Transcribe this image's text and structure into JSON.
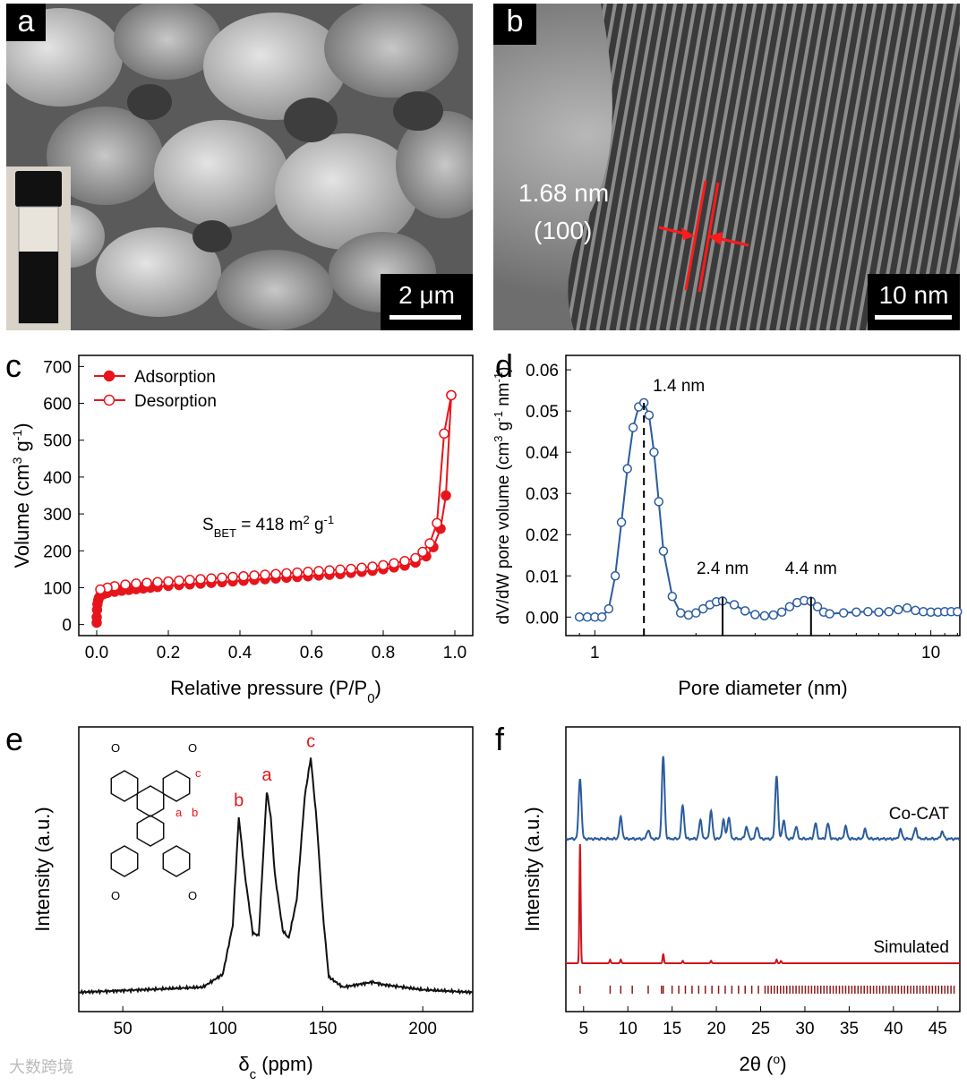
{
  "panels": {
    "a": {
      "label": "a",
      "scale_label": "2 μm"
    },
    "b": {
      "label": "b",
      "scale_label": "10 nm",
      "spacing_label": "1.68 nm",
      "plane_label": "(100)"
    },
    "c": {
      "label": "c"
    },
    "d": {
      "label": "d"
    },
    "e": {
      "label": "e"
    },
    "f": {
      "label": "f"
    }
  },
  "watermark": "大数跨境",
  "chart_data": [
    {
      "panel": "c",
      "type": "scatter",
      "xlabel": "Relative pressure (P/P0)",
      "ylabel": "Volume (cm3 g-1)",
      "xlim": [
        -0.05,
        1.05
      ],
      "ylim": [
        -30,
        730
      ],
      "xticks": [
        "0.0",
        "0.2",
        "0.4",
        "0.6",
        "0.8",
        "1.0"
      ],
      "yticks": [
        "0",
        "100",
        "200",
        "300",
        "400",
        "500",
        "600",
        "700"
      ],
      "annotation": "SBET = 418 m2 g-1",
      "legend": [
        "Adsorption",
        "Desorption"
      ],
      "legend_position": "top-left",
      "colors": {
        "adsorption": "#e8141b",
        "desorption": "#e8141b"
      },
      "series": [
        {
          "name": "Adsorption",
          "marker": "filled",
          "x": [
            0.0,
            0.0,
            0.001,
            0.002,
            0.004,
            0.006,
            0.01,
            0.02,
            0.03,
            0.05,
            0.07,
            0.09,
            0.11,
            0.13,
            0.15,
            0.17,
            0.2,
            0.23,
            0.26,
            0.29,
            0.32,
            0.35,
            0.38,
            0.41,
            0.44,
            0.47,
            0.5,
            0.53,
            0.56,
            0.59,
            0.62,
            0.65,
            0.68,
            0.71,
            0.74,
            0.77,
            0.8,
            0.83,
            0.86,
            0.89,
            0.92,
            0.94,
            0.96,
            0.975,
            0.99
          ],
          "y": [
            5,
            20,
            40,
            55,
            65,
            72,
            78,
            83,
            86,
            89,
            92,
            94,
            96,
            98,
            100,
            102,
            105,
            107,
            109,
            111,
            113,
            115,
            117,
            119,
            121,
            123,
            125,
            127,
            129,
            131,
            133,
            135,
            137,
            140,
            143,
            146,
            150,
            155,
            160,
            168,
            185,
            210,
            260,
            350,
            622
          ]
        },
        {
          "name": "Desorption",
          "marker": "open",
          "x": [
            0.99,
            0.97,
            0.95,
            0.93,
            0.91,
            0.89,
            0.86,
            0.83,
            0.8,
            0.77,
            0.74,
            0.71,
            0.68,
            0.65,
            0.62,
            0.59,
            0.56,
            0.53,
            0.5,
            0.47,
            0.44,
            0.41,
            0.38,
            0.35,
            0.32,
            0.29,
            0.26,
            0.23,
            0.2,
            0.17,
            0.14,
            0.11,
            0.08,
            0.05,
            0.03,
            0.01
          ],
          "y": [
            622,
            518,
            275,
            220,
            197,
            180,
            172,
            166,
            161,
            157,
            154,
            151,
            149,
            147,
            145,
            143,
            141,
            139,
            137,
            135,
            133,
            131,
            129,
            127,
            125,
            123,
            121,
            119,
            117,
            115,
            113,
            111,
            108,
            104,
            100,
            95
          ]
        }
      ]
    },
    {
      "panel": "d",
      "type": "line",
      "xlabel": "Pore diameter (nm)",
      "ylabel": "dV/dW pore volume (cm3 g-1 nm-1)",
      "xscale": "log",
      "xlim": [
        0.82,
        12.2
      ],
      "ylim": [
        -0.0045,
        0.0635
      ],
      "xticks": [
        "1",
        "10"
      ],
      "yticks": [
        "0.00",
        "0.01",
        "0.02",
        "0.03",
        "0.04",
        "0.05",
        "0.06"
      ],
      "annotations": [
        "1.4 nm",
        "2.4 nm",
        "4.4 nm"
      ],
      "colors": {
        "line": "#2b5c9e"
      },
      "series": [
        {
          "name": "",
          "x": [
            0.9,
            0.95,
            1.0,
            1.05,
            1.1,
            1.15,
            1.2,
            1.25,
            1.3,
            1.35,
            1.4,
            1.45,
            1.5,
            1.55,
            1.6,
            1.7,
            1.8,
            1.9,
            2.0,
            2.1,
            2.2,
            2.3,
            2.4,
            2.6,
            2.8,
            3.0,
            3.2,
            3.4,
            3.6,
            3.8,
            4.0,
            4.2,
            4.4,
            4.6,
            4.8,
            5.0,
            5.5,
            6.0,
            6.5,
            7.0,
            7.5,
            8.0,
            8.5,
            9.0,
            9.5,
            10.0,
            10.5,
            11.0,
            11.5,
            12.0
          ],
          "y": [
            0.0,
            0.0,
            0.0,
            0.0,
            0.002,
            0.01,
            0.023,
            0.036,
            0.046,
            0.051,
            0.052,
            0.049,
            0.04,
            0.028,
            0.016,
            0.005,
            0.001,
            0.0005,
            0.001,
            0.002,
            0.003,
            0.0037,
            0.0039,
            0.003,
            0.0015,
            0.0006,
            0.0003,
            0.0005,
            0.0012,
            0.0025,
            0.0035,
            0.004,
            0.0038,
            0.0025,
            0.0012,
            0.0008,
            0.001,
            0.0012,
            0.0013,
            0.0012,
            0.0013,
            0.0018,
            0.0022,
            0.0016,
            0.0013,
            0.0012,
            0.0012,
            0.0013,
            0.0013,
            0.0013
          ]
        }
      ]
    },
    {
      "panel": "e",
      "type": "line",
      "xlabel": "δc (ppm)",
      "ylabel": "Intensity (a.u.)",
      "xlim": [
        28,
        225
      ],
      "xticks": [
        "50",
        "100",
        "150",
        "200"
      ],
      "peak_labels": [
        "a",
        "b",
        "c"
      ],
      "structure_labels": [
        "c",
        "a",
        "b"
      ],
      "colors": {
        "line": "#111111",
        "peak_labels": "#e8141b"
      },
      "series": [
        {
          "name": "",
          "x": [
            28,
            60,
            90,
            100,
            105,
            108,
            111,
            115,
            118,
            122,
            124,
            126,
            130,
            133,
            137,
            141,
            144,
            147,
            150,
            153,
            160,
            175,
            180,
            200,
            225
          ],
          "y": [
            0.04,
            0.05,
            0.06,
            0.11,
            0.3,
            0.72,
            0.5,
            0.27,
            0.26,
            0.82,
            0.72,
            0.5,
            0.28,
            0.25,
            0.4,
            0.8,
            0.95,
            0.7,
            0.35,
            0.1,
            0.06,
            0.08,
            0.07,
            0.05,
            0.04
          ]
        }
      ]
    },
    {
      "panel": "f",
      "type": "line",
      "xlabel": "2θ (o)",
      "ylabel": "Intensity (a.u.)",
      "xlim": [
        3,
        47.5
      ],
      "xticks": [
        "5",
        "10",
        "15",
        "20",
        "25",
        "30",
        "35",
        "40",
        "45"
      ],
      "legend": [
        "Co-CAT",
        "Simulated"
      ],
      "colors": {
        "experimental": "#2b5c9e",
        "simulated": "#d0141b",
        "ticks": "#8b1a1a"
      },
      "series": [
        {
          "name": "Co-CAT",
          "peaks": [
            [
              4.6,
              1.0
            ],
            [
              9.2,
              0.35
            ],
            [
              12.3,
              0.15
            ],
            [
              14.0,
              1.35
            ],
            [
              16.2,
              0.55
            ],
            [
              18.2,
              0.3
            ],
            [
              19.4,
              0.45
            ],
            [
              20.8,
              0.3
            ],
            [
              21.4,
              0.35
            ],
            [
              23.4,
              0.2
            ],
            [
              24.6,
              0.2
            ],
            [
              26.8,
              1.05
            ],
            [
              27.6,
              0.3
            ],
            [
              29.0,
              0.2
            ],
            [
              31.2,
              0.25
            ],
            [
              32.6,
              0.25
            ],
            [
              34.6,
              0.2
            ],
            [
              36.8,
              0.15
            ],
            [
              40.8,
              0.15
            ],
            [
              42.5,
              0.18
            ],
            [
              45.5,
              0.12
            ]
          ]
        },
        {
          "name": "Simulated",
          "peaks": [
            [
              4.6,
              1.0
            ],
            [
              8.0,
              0.03
            ],
            [
              9.2,
              0.03
            ],
            [
              14.0,
              0.08
            ],
            [
              16.2,
              0.02
            ],
            [
              19.4,
              0.02
            ],
            [
              26.8,
              0.03
            ],
            [
              27.3,
              0.02
            ]
          ]
        }
      ]
    }
  ]
}
